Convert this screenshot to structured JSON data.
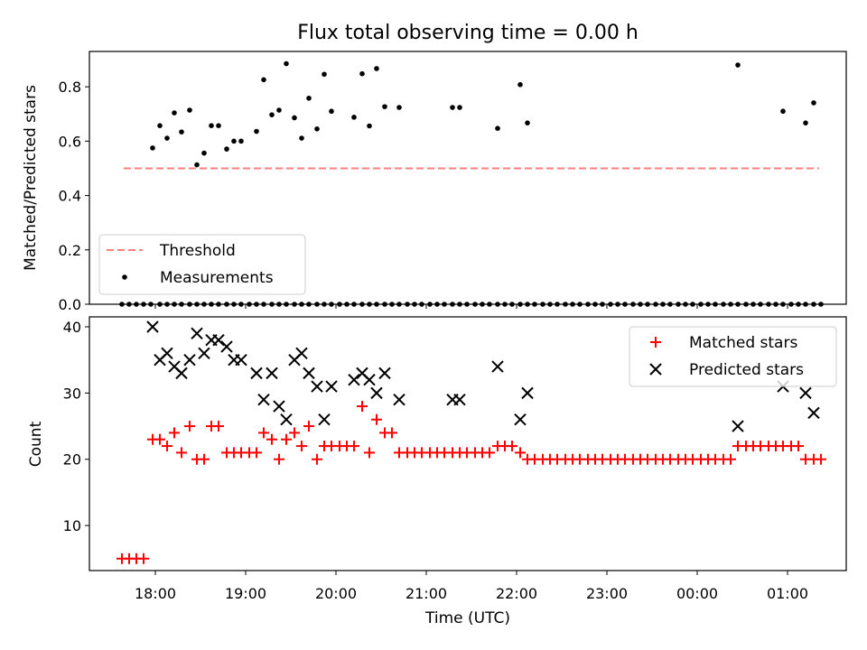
{
  "chart_data": [
    {
      "type": "scatter",
      "title": "Flux total observing time = 0.00 h",
      "xlabel": "",
      "ylabel": "Matched/Predicted stars",
      "ylim": [
        0,
        0.93
      ],
      "yticks": [
        "0.0",
        "0.2",
        "0.4",
        "0.6",
        "0.8"
      ],
      "ytick_values": [
        0,
        0.2,
        0.4,
        0.6,
        0.8
      ],
      "xlim": [
        17.27,
        25.65
      ],
      "grid": false,
      "legend": "lower-left",
      "threshold": {
        "name": "Threshold",
        "value": 0.5,
        "x_start": 17.65,
        "x_end": 25.35,
        "color": "#ff7f7f"
      },
      "series": [
        {
          "name": "Measurements",
          "color": "#000000",
          "x": [
            17.63,
            17.71,
            17.79,
            17.87,
            17.95,
            18.05,
            18.13,
            18.21,
            18.29,
            18.38,
            18.46,
            18.54,
            18.62,
            18.7,
            18.79,
            18.87,
            18.95,
            19.04,
            19.12,
            19.2,
            19.29,
            19.37,
            19.45,
            19.54,
            19.62,
            19.7,
            19.79,
            19.87,
            19.95,
            20.04,
            20.12,
            20.2,
            20.29,
            20.37,
            20.45,
            20.54,
            20.62,
            20.7,
            20.79,
            20.87,
            20.95,
            21.04,
            21.12,
            21.2,
            21.29,
            21.37,
            21.45,
            21.54,
            21.62,
            21.7,
            21.79,
            21.87,
            21.95,
            22.04,
            22.12,
            22.2,
            22.29,
            22.37,
            22.45,
            22.54,
            22.62,
            22.7,
            22.79,
            22.87,
            22.95,
            23.04,
            23.12,
            23.2,
            23.29,
            23.37,
            23.45,
            23.54,
            23.62,
            23.7,
            23.79,
            23.87,
            23.95,
            24.04,
            24.12,
            24.2,
            24.29,
            24.37,
            24.45,
            24.54,
            24.62,
            24.7,
            24.79,
            24.87,
            24.95,
            25.04,
            25.12,
            25.2,
            25.29,
            25.37,
            17.97,
            18.05,
            18.13,
            18.21,
            18.29,
            18.38,
            18.46,
            18.54,
            18.62,
            18.7,
            18.79,
            18.87,
            18.95,
            19.12,
            19.2,
            19.29,
            19.37,
            19.45,
            19.54,
            19.62,
            19.7,
            19.79,
            19.87,
            19.95,
            20.2,
            20.29,
            20.37,
            20.45,
            20.54,
            20.7,
            21.29,
            21.37,
            21.79,
            22.04,
            22.12,
            24.45,
            24.95,
            25.2,
            25.29
          ],
          "y": [
            0,
            0,
            0,
            0,
            0,
            0,
            0,
            0,
            0,
            0,
            0,
            0,
            0,
            0,
            0,
            0,
            0,
            0,
            0,
            0,
            0,
            0,
            0,
            0,
            0,
            0,
            0,
            0,
            0,
            0,
            0,
            0,
            0,
            0,
            0,
            0,
            0,
            0,
            0,
            0,
            0,
            0,
            0,
            0,
            0,
            0,
            0,
            0,
            0,
            0,
            0,
            0,
            0,
            0,
            0,
            0,
            0,
            0,
            0,
            0,
            0,
            0,
            0,
            0,
            0,
            0,
            0,
            0,
            0,
            0,
            0,
            0,
            0,
            0,
            0,
            0,
            0,
            0,
            0,
            0,
            0,
            0,
            0,
            0,
            0,
            0,
            0,
            0,
            0,
            0,
            0,
            0,
            0,
            0,
            0.575,
            0.657,
            0.611,
            0.704,
            0.634,
            0.714,
            0.513,
            0.556,
            0.657,
            0.657,
            0.571,
            0.6,
            0.6,
            0.636,
            0.826,
            0.697,
            0.714,
            0.885,
            0.686,
            0.611,
            0.758,
            0.645,
            0.846,
            0.71,
            0.688,
            0.848,
            0.656,
            0.867,
            0.727,
            0.724,
            0.724,
            0.724,
            0.647,
            0.808,
            0.667,
            0.88,
            0.71,
            0.667,
            0.741
          ],
          "hidden_zero_points_x_exclude": []
        }
      ]
    },
    {
      "type": "scatter",
      "title": "",
      "xlabel": "Time (UTC)",
      "ylabel": "Count",
      "ylim": [
        3.2,
        41.5
      ],
      "yticks": [
        "10",
        "20",
        "30",
        "40"
      ],
      "ytick_values": [
        10,
        20,
        30,
        40
      ],
      "xlim": [
        17.27,
        25.65
      ],
      "xticks": [
        "18:00",
        "19:00",
        "20:00",
        "21:00",
        "22:00",
        "23:00",
        "00:00",
        "01:00"
      ],
      "xtick_values": [
        18,
        19,
        20,
        21,
        22,
        23,
        24,
        25
      ],
      "grid": false,
      "legend": "top-right",
      "series": [
        {
          "name": "Matched stars",
          "marker": "plus",
          "color": "#ff0000",
          "x": [
            17.63,
            17.71,
            17.79,
            17.87,
            17.97,
            18.05,
            18.13,
            18.21,
            18.29,
            18.38,
            18.46,
            18.54,
            18.62,
            18.7,
            18.79,
            18.87,
            18.95,
            19.04,
            19.12,
            19.2,
            19.29,
            19.37,
            19.45,
            19.54,
            19.62,
            19.7,
            19.79,
            19.87,
            19.95,
            20.04,
            20.12,
            20.2,
            20.29,
            20.37,
            20.45,
            20.54,
            20.62,
            20.7,
            20.79,
            20.87,
            20.95,
            21.04,
            21.12,
            21.2,
            21.29,
            21.37,
            21.45,
            21.54,
            21.62,
            21.7,
            21.79,
            21.87,
            21.95,
            22.04,
            22.12,
            22.2,
            22.29,
            22.37,
            22.45,
            22.54,
            22.62,
            22.7,
            22.79,
            22.87,
            22.95,
            23.04,
            23.12,
            23.2,
            23.29,
            23.37,
            23.45,
            23.54,
            23.62,
            23.7,
            23.79,
            23.87,
            23.95,
            24.04,
            24.12,
            24.2,
            24.29,
            24.37,
            24.45,
            24.54,
            24.62,
            24.7,
            24.79,
            24.87,
            24.95,
            25.04,
            25.12,
            25.2,
            25.29,
            25.37
          ],
          "y": [
            5,
            5,
            5,
            5,
            23,
            23,
            22,
            24,
            21,
            25,
            20,
            20,
            25,
            25,
            21,
            21,
            21,
            21,
            21,
            24,
            23,
            20,
            23,
            24,
            22,
            25,
            20,
            22,
            22,
            22,
            22,
            22,
            28,
            21,
            26,
            24,
            24,
            21,
            21,
            21,
            21,
            21,
            21,
            21,
            21,
            21,
            21,
            21,
            21,
            21,
            22,
            22,
            22,
            21,
            20,
            20,
            20,
            20,
            20,
            20,
            20,
            20,
            20,
            20,
            20,
            20,
            20,
            20,
            20,
            20,
            20,
            20,
            20,
            20,
            20,
            20,
            20,
            20,
            20,
            20,
            20,
            20,
            22,
            22,
            22,
            22,
            22,
            22,
            22,
            22,
            22,
            20,
            20,
            20
          ]
        },
        {
          "name": "Predicted stars",
          "marker": "x",
          "color": "#000000",
          "x": [
            17.97,
            18.05,
            18.13,
            18.21,
            18.29,
            18.38,
            18.46,
            18.54,
            18.62,
            18.7,
            18.79,
            18.87,
            18.95,
            19.12,
            19.2,
            19.29,
            19.37,
            19.45,
            19.54,
            19.62,
            19.7,
            19.79,
            19.87,
            19.95,
            20.2,
            20.29,
            20.37,
            20.45,
            20.54,
            20.7,
            21.29,
            21.37,
            21.79,
            22.04,
            22.12,
            24.45,
            24.95,
            25.2,
            25.29
          ],
          "y": [
            40,
            35,
            36,
            34,
            33,
            35,
            39,
            36,
            38,
            38,
            37,
            35,
            35,
            33,
            29,
            33,
            28,
            26,
            35,
            36,
            33,
            31,
            26,
            31,
            32,
            33,
            32,
            30,
            33,
            29,
            29,
            29,
            34,
            26,
            30,
            25,
            31,
            30,
            27
          ]
        }
      ]
    }
  ]
}
